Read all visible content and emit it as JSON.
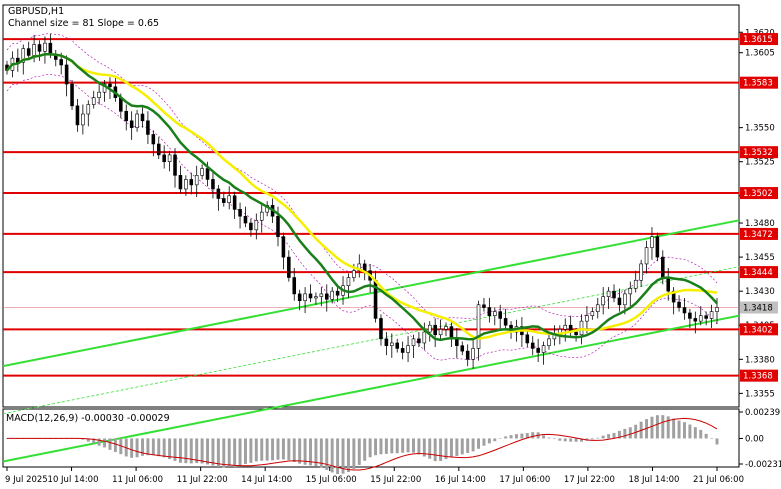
{
  "chart": {
    "title": "GBPUSD,H1",
    "subtitle": "Channel size = 81 Slope = 0.65",
    "macd_label": "MACD(12,26,9) -0.00030 -0.00029"
  },
  "colors": {
    "background": "#ffffff",
    "level_line": "#e00000",
    "level_label_bg": "#e00000",
    "current_price_bg": "#c0c0c0",
    "candles": "#000000",
    "ma_fast": "#f5f000",
    "ma_slow": "#1a7f1a",
    "channel": "#33e033",
    "bands": "#b000b0",
    "macd_hist": "#a0a0a0",
    "macd_signal": "#cc0000"
  },
  "chart_data": {
    "type": "candlestick",
    "symbol": "GBPUSD",
    "timeframe": "H1",
    "ylim": [
      1.3345,
      1.364
    ],
    "y_ticks": [
      "1.3620",
      "1.3605",
      "1.3550",
      "1.3525",
      "1.3500",
      "1.3480",
      "1.3455",
      "1.3430",
      "1.3405",
      "1.3380",
      "1.3355"
    ],
    "x_ticks": [
      "9 Jul 2025",
      "10 Jul 14:00",
      "11 Jul 06:00",
      "11 Jul 22:00",
      "14 Jul 14:00",
      "15 Jul 06:00",
      "15 Jul 22:00",
      "16 Jul 14:00",
      "17 Jul 06:00",
      "17 Jul 22:00",
      "18 Jul 14:00",
      "21 Jul 06:00"
    ],
    "levels": [
      {
        "label": "1.3615",
        "value": 1.3615
      },
      {
        "label": "1.3583",
        "value": 1.3583
      },
      {
        "label": "1.3532",
        "value": 1.3532
      },
      {
        "label": "1.3502",
        "value": 1.3502
      },
      {
        "label": "1.3472",
        "value": 1.3472
      },
      {
        "label": "1.3444",
        "value": 1.3444
      },
      {
        "label": "1.3402",
        "value": 1.3402
      },
      {
        "label": "1.3368",
        "value": 1.3368
      }
    ],
    "current_price": {
      "label": "1.3418",
      "value": 1.3418
    },
    "closes": [
      1.3592,
      1.3601,
      1.3598,
      1.3608,
      1.3603,
      1.3611,
      1.3606,
      1.3612,
      1.3604,
      1.36,
      1.3596,
      1.3582,
      1.3566,
      1.3552,
      1.356,
      1.3567,
      1.3572,
      1.3576,
      1.3582,
      1.358,
      1.3572,
      1.3562,
      1.3555,
      1.355,
      1.356,
      1.3555,
      1.3545,
      1.3538,
      1.353,
      1.3525,
      1.353,
      1.3515,
      1.3505,
      1.3512,
      1.3508,
      1.3515,
      1.352,
      1.3512,
      1.3505,
      1.3498,
      1.3495,
      1.35,
      1.349,
      1.3485,
      1.348,
      1.3475,
      1.3482,
      1.3488,
      1.3493,
      1.3485,
      1.347,
      1.3455,
      1.344,
      1.3428,
      1.3423,
      1.3428,
      1.3425,
      1.3426,
      1.3428,
      1.3424,
      1.343,
      1.3427,
      1.3434,
      1.344,
      1.3445,
      1.345,
      1.3445,
      1.3438,
      1.341,
      1.3395,
      1.339,
      1.3392,
      1.3388,
      1.3385,
      1.339,
      1.3395,
      1.3392,
      1.34,
      1.3405,
      1.3398,
      1.3402,
      1.3404,
      1.3396,
      1.339,
      1.3386,
      1.338,
      1.3388,
      1.342,
      1.3418,
      1.3412,
      1.3415,
      1.341,
      1.3405,
      1.34,
      1.3404,
      1.3398,
      1.3392,
      1.3388,
      1.3385,
      1.339,
      1.3395,
      1.3398,
      1.3402,
      1.3405,
      1.34,
      1.3398,
      1.3408,
      1.3412,
      1.3415,
      1.342,
      1.3426,
      1.343,
      1.3425,
      1.342,
      1.3428,
      1.3432,
      1.3438,
      1.345,
      1.3462,
      1.347,
      1.3455,
      1.344,
      1.343,
      1.3422,
      1.3418,
      1.3414,
      1.341,
      1.3408,
      1.3412,
      1.341,
      1.3415,
      1.3418
    ],
    "macd": {
      "name": "MACD(12,26,9)",
      "main": -0.0003,
      "signal": -0.00029,
      "y_ticks": [
        "0.00239",
        "0.00",
        "-0.00231"
      ],
      "ylim": [
        -0.00231,
        0.00239
      ]
    }
  }
}
